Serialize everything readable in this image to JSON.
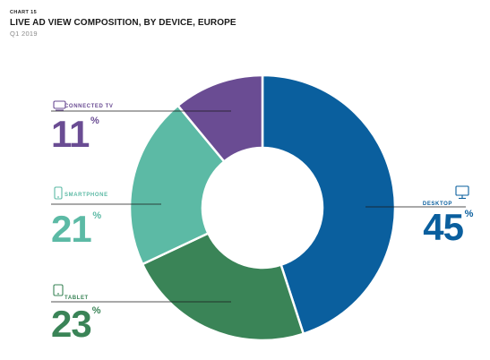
{
  "header": {
    "chart_number": "CHART 15",
    "title": "LIVE AD VIEW COMPOSITION, BY DEVICE, EUROPE",
    "subtitle": "Q1 2019"
  },
  "chart_data": {
    "type": "pie",
    "donut": true,
    "title": "LIVE AD VIEW COMPOSITION, BY DEVICE, EUROPE",
    "subtitle": "Q1 2019",
    "unit": "%",
    "slices": [
      {
        "label": "DESKTOP",
        "value": 45,
        "color": "#0a5f9e",
        "icon": "monitor-icon"
      },
      {
        "label": "TABLET",
        "value": 23,
        "color": "#3a8457",
        "icon": "tablet-icon"
      },
      {
        "label": "SMARTPHONE",
        "value": 21,
        "color": "#5cbaa5",
        "icon": "smartphone-icon"
      },
      {
        "label": "CONNECTED TV",
        "value": 11,
        "color": "#6a4c93",
        "icon": "tv-icon"
      }
    ]
  }
}
